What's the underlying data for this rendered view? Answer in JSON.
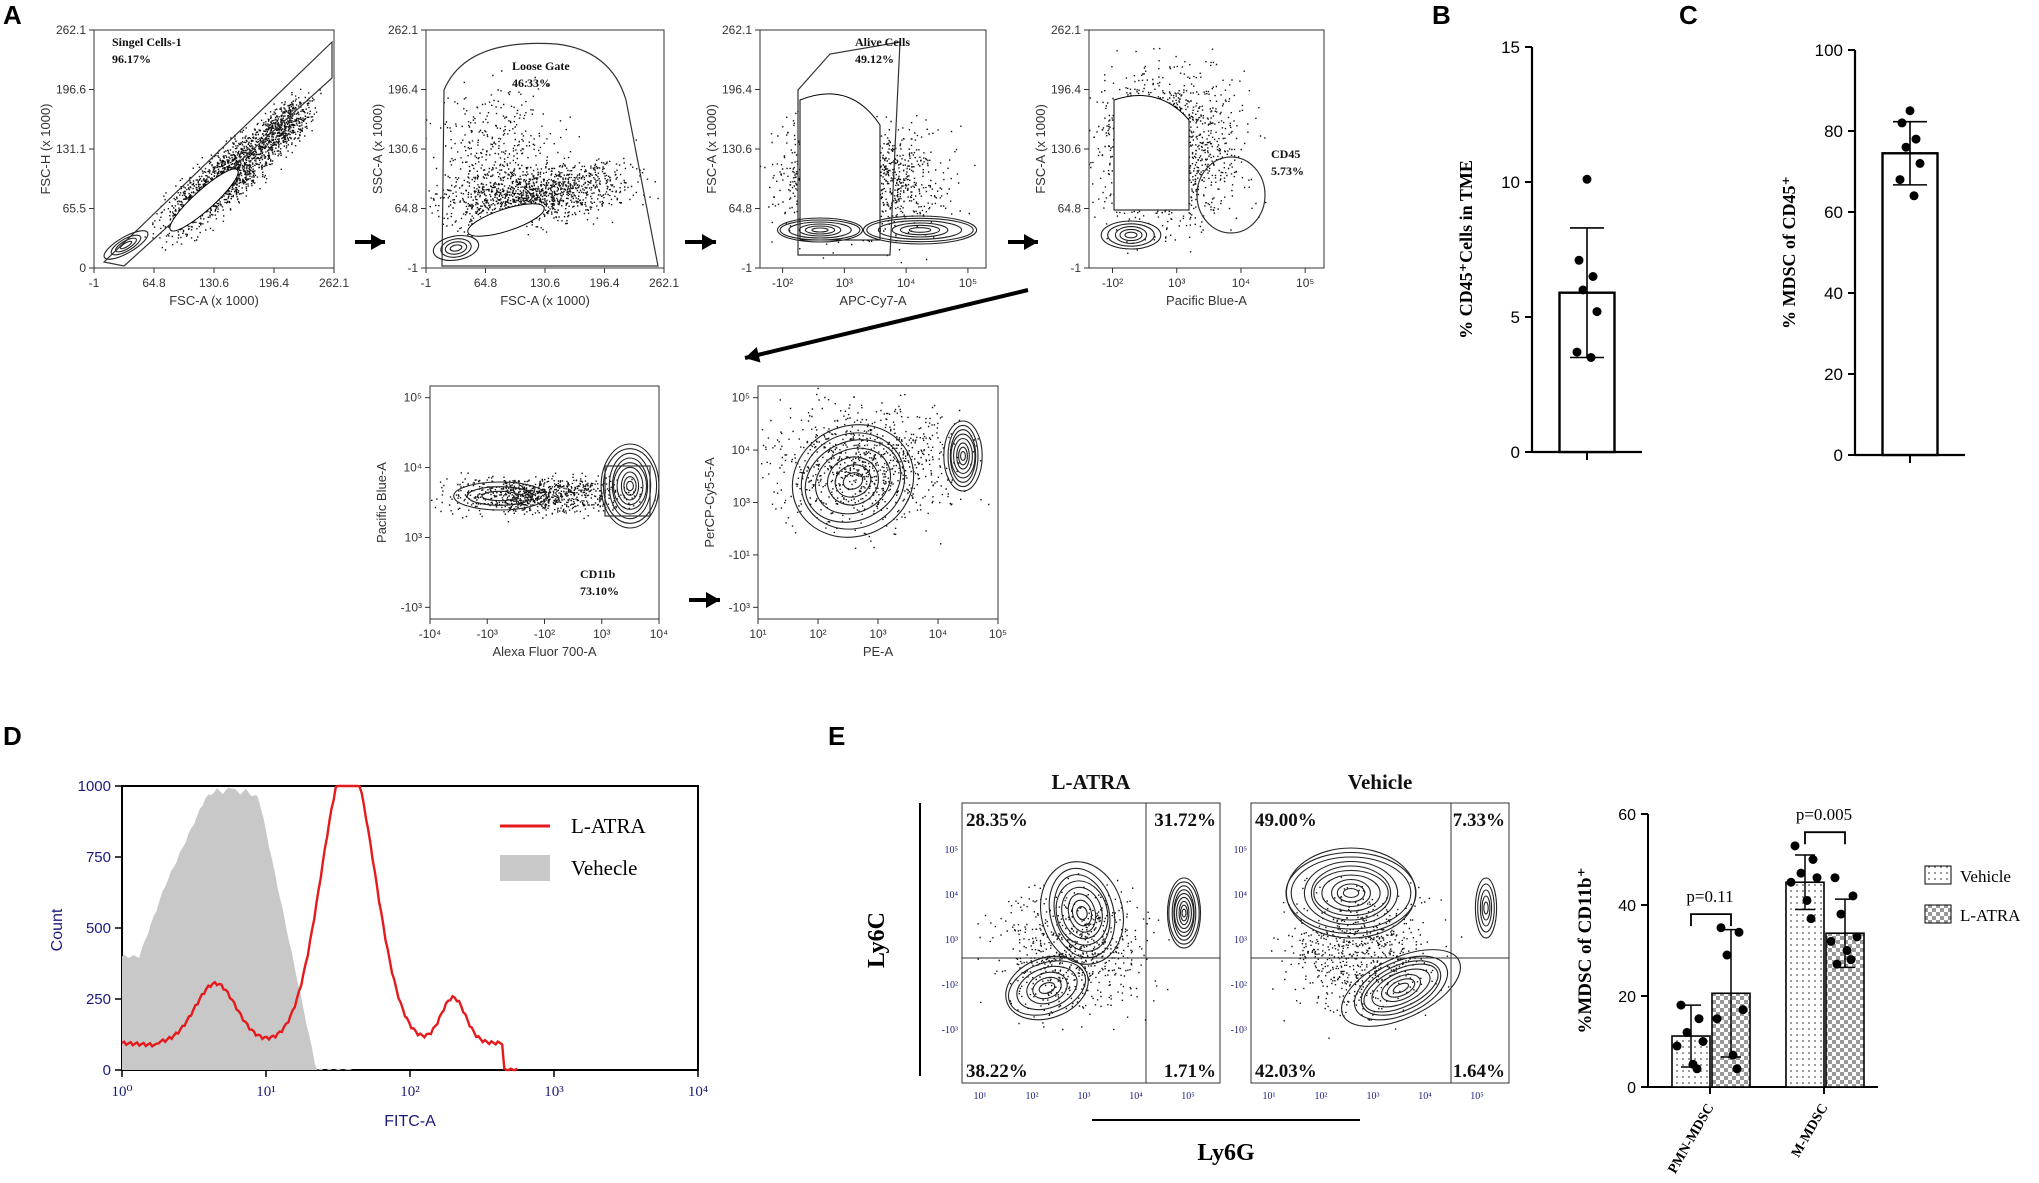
{
  "panels": {
    "A": "A",
    "B": "B",
    "C": "C",
    "D": "D",
    "E": "E"
  },
  "gating": [
    {
      "xlabel": "FSC-A (x 1000)",
      "ylabel": "FSC-H (x 1000)",
      "xticks": [
        "-1",
        "64.8",
        "130.6",
        "196.4",
        "262.1"
      ],
      "yticks": [
        "262.1",
        "196.6",
        "131.1",
        "65.5",
        "0"
      ],
      "gate_name": "Singel Cells-1",
      "gate_pct": "96.17%"
    },
    {
      "xlabel": "FSC-A (x 1000)",
      "ylabel": "SSC-A (x 1000)",
      "xticks": [
        "-1",
        "64.8",
        "130.6",
        "196.4",
        "262.1"
      ],
      "yticks": [
        "262.1",
        "196.4",
        "130.6",
        "64.8",
        "-1"
      ],
      "gate_name": "Loose Gate",
      "gate_pct": "46.33%"
    },
    {
      "xlabel": "APC-Cy7-A",
      "ylabel": "FSC-A (x 1000)",
      "xticks": [
        "-10²",
        "10³",
        "10⁴",
        "10⁵"
      ],
      "yticks": [
        "262.1",
        "196.4",
        "130.6",
        "64.8",
        "-1"
      ],
      "gate_name": "Alive Cells",
      "gate_pct": "49.12%"
    },
    {
      "xlabel": "Pacific Blue-A",
      "ylabel": "FSC-A (x 1000)",
      "xticks": [
        "-10²",
        "10³",
        "10⁴",
        "10⁵"
      ],
      "yticks": [
        "262.1",
        "196.4",
        "130.6",
        "64.8",
        "-1"
      ],
      "gate_name": "CD45",
      "gate_pct": "5.73%"
    },
    {
      "xlabel": "Alexa Fluor 700-A",
      "ylabel": "Pacific Blue-A",
      "xticks": [
        "-10⁴",
        "-10³",
        "-10²",
        "10³",
        "10⁴"
      ],
      "yticks": [
        "10⁵",
        "10⁴",
        "10³",
        "-10³"
      ],
      "gate_name": "CD11b",
      "gate_pct": "73.10%"
    },
    {
      "xlabel": "PE-A",
      "ylabel": "PerCP-Cy5-5-A",
      "xticks": [
        "10¹",
        "10²",
        "10³",
        "10⁴",
        "10⁵"
      ],
      "yticks": [
        "10⁵",
        "10⁴",
        "10³",
        "-10¹",
        "-10³"
      ],
      "gate_name": "",
      "gate_pct": ""
    }
  ],
  "chart_data": [
    {
      "type": "bar",
      "panel": "B",
      "ylabel": "% CD45⁺Cells in TME",
      "ylim": [
        0,
        15
      ],
      "yticks": [
        "0",
        "5",
        "10",
        "15"
      ],
      "mean": 5.9,
      "sd": 2.4,
      "points": [
        10.1,
        7.1,
        6.5,
        6.0,
        5.2,
        3.7,
        3.5
      ]
    },
    {
      "type": "bar",
      "panel": "C",
      "ylabel": "% MDSC  of CD45⁺",
      "ylim": [
        0,
        100
      ],
      "yticks": [
        "0",
        "20",
        "40",
        "60",
        "80",
        "100"
      ],
      "mean": 74.5,
      "sd": 7.8,
      "points": [
        85,
        82,
        78,
        76,
        72,
        68,
        64
      ]
    },
    {
      "type": "histogram",
      "panel": "D",
      "xlabel": "FITC-A",
      "ylabel": "Count",
      "xticks": [
        "10⁰",
        "10¹",
        "10²",
        "10³",
        "10⁴"
      ],
      "yticks": [
        "0",
        "250",
        "500",
        "750",
        "1000"
      ],
      "ylim": [
        0,
        1000
      ],
      "series": [
        {
          "name": "L-ATRA",
          "color": "#e41a1c",
          "peak_log10": 1.57,
          "peak_count": 1000
        },
        {
          "name": "Vehecle",
          "color": "#c8c8c8",
          "peak_log10": 0.75,
          "peak_count": 1000
        }
      ]
    },
    {
      "type": "contour-quadrants",
      "panel": "E",
      "xlabel": "Ly6G",
      "ylabel": "Ly6C",
      "plots": [
        {
          "title": "L-ATRA",
          "q_tl": "28.35%",
          "q_tr": "31.72%",
          "q_bl": "38.22%",
          "q_br": "1.71%"
        },
        {
          "title": "Vehicle",
          "q_tl": "49.00%",
          "q_tr": "7.33%",
          "q_bl": "42.03%",
          "q_br": "1.64%"
        }
      ],
      "ticks_x": [
        "10¹",
        "10²",
        "10³",
        "10⁴",
        "10⁵"
      ],
      "ticks_y": [
        "10⁵",
        "10⁴",
        "10³",
        "-10²",
        "-10³"
      ]
    },
    {
      "type": "bar",
      "panel": "E",
      "ylabel": "%MDSC of CD11b⁺",
      "ylim": [
        0,
        60
      ],
      "yticks": [
        "0",
        "20",
        "40",
        "60"
      ],
      "categories": [
        "PMN-MDSC",
        "M-MDSC"
      ],
      "series": [
        {
          "name": "Vehicle",
          "values": [
            11.2,
            45.0
          ],
          "sd": [
            6.8,
            6.0
          ]
        },
        {
          "name": "L-ATRA",
          "values": [
            20.6,
            33.8
          ],
          "sd": [
            14.0,
            7.5
          ]
        }
      ],
      "points": {
        "Vehicle": [
          [
            18,
            15,
            12,
            10,
            9,
            5,
            4
          ],
          [
            53,
            50,
            47,
            46,
            45,
            41,
            37
          ]
        ],
        "L-ATRA": [
          [
            35,
            34,
            29,
            17,
            15,
            7,
            4
          ],
          [
            46,
            42,
            38,
            33,
            32,
            30,
            28,
            27
          ]
        ]
      },
      "annotations": [
        "p=0.11",
        "p=0.005"
      ]
    }
  ]
}
